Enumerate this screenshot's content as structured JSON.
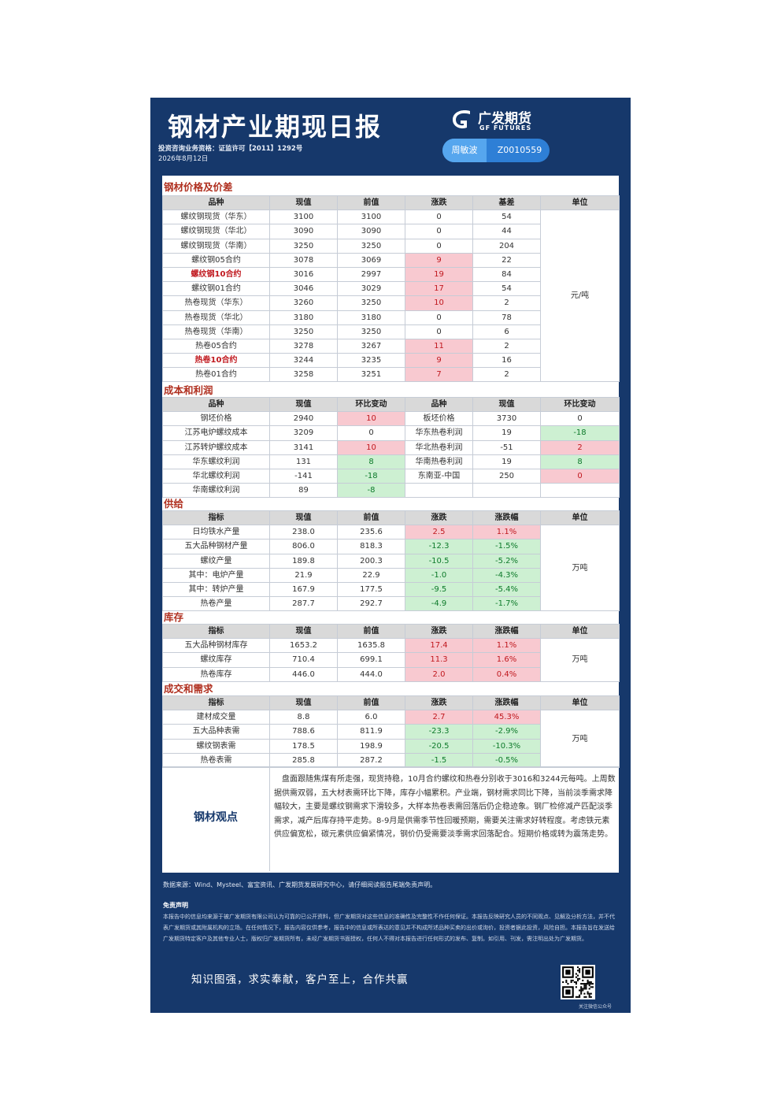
{
  "header": {
    "title": "钢材产业期现日报",
    "license": "投资咨询业务资格：证监许可【2011】1292号",
    "date": "2026年8月12日",
    "logo_cn": "广发期货",
    "logo_en": "GF FUTURES",
    "analyst_name": "周敏波",
    "analyst_id": "Z0010559"
  },
  "sections": {
    "price": "钢材价格及价差",
    "cost": "成本和利润",
    "supply": "供给",
    "inventory": "库存",
    "demand": "成交和需求"
  },
  "price_table": {
    "headers": [
      "品种",
      "现值",
      "前值",
      "涨跌",
      "基差",
      "单位"
    ],
    "unit": "元/吨",
    "rows": [
      {
        "name": "螺纹钢现货（华东）",
        "cur": "3100",
        "prev": "3100",
        "chg": "0",
        "basis": "54",
        "hl": false,
        "chg_color": ""
      },
      {
        "name": "螺纹钢现货（华北）",
        "cur": "3090",
        "prev": "3090",
        "chg": "0",
        "basis": "44",
        "hl": false,
        "chg_color": ""
      },
      {
        "name": "螺纹钢现货（华南）",
        "cur": "3250",
        "prev": "3250",
        "chg": "0",
        "basis": "204",
        "hl": false,
        "chg_color": ""
      },
      {
        "name": "螺纹钢05合约",
        "cur": "3078",
        "prev": "3069",
        "chg": "9",
        "basis": "22",
        "hl": false,
        "chg_color": "red"
      },
      {
        "name": "螺纹钢10合约",
        "cur": "3016",
        "prev": "2997",
        "chg": "19",
        "basis": "84",
        "hl": true,
        "chg_color": "red"
      },
      {
        "name": "螺纹钢01合约",
        "cur": "3046",
        "prev": "3029",
        "chg": "17",
        "basis": "54",
        "hl": false,
        "chg_color": "red"
      },
      {
        "name": "热卷现货（华东）",
        "cur": "3260",
        "prev": "3250",
        "chg": "10",
        "basis": "2",
        "hl": false,
        "chg_color": "red"
      },
      {
        "name": "热卷现货（华北）",
        "cur": "3180",
        "prev": "3180",
        "chg": "0",
        "basis": "78",
        "hl": false,
        "chg_color": ""
      },
      {
        "name": "热卷现货（华南）",
        "cur": "3250",
        "prev": "3250",
        "chg": "0",
        "basis": "6",
        "hl": false,
        "chg_color": ""
      },
      {
        "name": "热卷05合约",
        "cur": "3278",
        "prev": "3267",
        "chg": "11",
        "basis": "2",
        "hl": false,
        "chg_color": "red"
      },
      {
        "name": "热卷10合约",
        "cur": "3244",
        "prev": "3235",
        "chg": "9",
        "basis": "16",
        "hl": true,
        "chg_color": "red"
      },
      {
        "name": "热卷01合约",
        "cur": "3258",
        "prev": "3251",
        "chg": "7",
        "basis": "2",
        "hl": false,
        "chg_color": "red"
      }
    ]
  },
  "cost_table": {
    "headers": [
      "品种",
      "现值",
      "环比变动",
      "品种",
      "现值",
      "环比变动"
    ],
    "rows": [
      {
        "n1": "钢坯价格",
        "v1": "2940",
        "c1": "10",
        "c1c": "red",
        "n2": "板坯价格",
        "v2": "3730",
        "c2": "0",
        "c2c": ""
      },
      {
        "n1": "江苏电炉螺纹成本",
        "v1": "3209",
        "c1": "0",
        "c1c": "",
        "n2": "华东热卷利润",
        "v2": "19",
        "c2": "-18",
        "c2c": "grn"
      },
      {
        "n1": "江苏转炉螺纹成本",
        "v1": "3141",
        "c1": "10",
        "c1c": "red",
        "n2": "华北热卷利润",
        "v2": "-51",
        "c2": "2",
        "c2c": "red"
      },
      {
        "n1": "华东螺纹利润",
        "v1": "131",
        "c1": "8",
        "c1c": "grn",
        "n2": "华南热卷利润",
        "v2": "19",
        "c2": "8",
        "c2c": "grn"
      },
      {
        "n1": "华北螺纹利润",
        "v1": "-141",
        "c1": "-18",
        "c1c": "grn",
        "n2": "东南亚-中国",
        "v2": "250",
        "c2": "0",
        "c2c": "red"
      },
      {
        "n1": "华南螺纹利润",
        "v1": "89",
        "c1": "-8",
        "c1c": "grn",
        "n2": "",
        "v2": "",
        "c2": "",
        "c2c": ""
      }
    ]
  },
  "supply_table": {
    "headers": [
      "指标",
      "现值",
      "前值",
      "涨跌",
      "涨跌幅",
      "单位"
    ],
    "unit": "万吨",
    "rows": [
      {
        "name": "日均铁水产量",
        "cur": "238.0",
        "prev": "235.6",
        "chg": "2.5",
        "pct": "1.1%",
        "color": "red"
      },
      {
        "name": "五大品种钢材产量",
        "cur": "806.0",
        "prev": "818.3",
        "chg": "-12.3",
        "pct": "-1.5%",
        "color": "grn"
      },
      {
        "name": "螺纹产量",
        "cur": "189.8",
        "prev": "200.3",
        "chg": "-10.5",
        "pct": "-5.2%",
        "color": "grn"
      },
      {
        "name": "其中：电炉产量",
        "cur": "21.9",
        "prev": "22.9",
        "chg": "-1.0",
        "pct": "-4.3%",
        "color": "grn"
      },
      {
        "name": "其中：转炉产量",
        "cur": "167.9",
        "prev": "177.5",
        "chg": "-9.5",
        "pct": "-5.4%",
        "color": "grn"
      },
      {
        "name": "热卷产量",
        "cur": "287.7",
        "prev": "292.7",
        "chg": "-4.9",
        "pct": "-1.7%",
        "color": "grn"
      }
    ]
  },
  "inventory_table": {
    "headers": [
      "指标",
      "现值",
      "前值",
      "涨跌",
      "涨跌幅",
      "单位"
    ],
    "unit": "万吨",
    "rows": [
      {
        "name": "五大品种钢材库存",
        "cur": "1653.2",
        "prev": "1635.8",
        "chg": "17.4",
        "pct": "1.1%",
        "color": "red"
      },
      {
        "name": "螺纹库存",
        "cur": "710.4",
        "prev": "699.1",
        "chg": "11.3",
        "pct": "1.6%",
        "color": "red"
      },
      {
        "name": "热卷库存",
        "cur": "446.0",
        "prev": "444.0",
        "chg": "2.0",
        "pct": "0.4%",
        "color": "red"
      }
    ]
  },
  "demand_table": {
    "headers": [
      "指标",
      "现值",
      "前值",
      "涨跌",
      "涨跌幅",
      "单位"
    ],
    "unit": "万吨",
    "rows": [
      {
        "name": "建材成交量",
        "cur": "8.8",
        "prev": "6.0",
        "chg": "2.7",
        "pct": "45.3%",
        "color": "red"
      },
      {
        "name": "五大品种表需",
        "cur": "788.6",
        "prev": "811.9",
        "chg": "-23.3",
        "pct": "-2.9%",
        "color": "grn"
      },
      {
        "name": "螺纹钢表需",
        "cur": "178.5",
        "prev": "198.9",
        "chg": "-20.5",
        "pct": "-10.3%",
        "color": "grn"
      },
      {
        "name": "热卷表需",
        "cur": "285.8",
        "prev": "287.2",
        "chg": "-1.5",
        "pct": "-0.5%",
        "color": "grn"
      }
    ]
  },
  "view": {
    "title": "钢材观点",
    "text": "盘面跟随焦煤有所走强，现货持稳，10月合约螺纹和热卷分别收于3016和3244元每吨。上周数据供需双弱，五大材表需环比下降，库存小幅累积。产业端，钢材需求同比下降，当前淡季需求降幅较大，主要是螺纹钢需求下滑较多，大样本热卷表需回落后仍企稳迹象。钢厂检修减产匹配淡季需求，减产后库存持平走势。8-9月是供需季节性回暖预期，需要关注需求好转程度。考虑铁元素供应偏宽松，碳元素供应偏紧情况，钢价仍受需要淡季需求回落配合。短期价格或转为震荡走势。"
  },
  "footer": {
    "source": "数据来源：Wind、Mysteel、富宝资讯、广发期货发展研究中心，请仔细阅读报告尾端免责声明。",
    "disclaimer_title": "免责声明",
    "disclaimer_text": "本报告中的信息均来源于被广发期货有限公司认为可靠的已公开资料，但广发期货对这些信息的准确性及完整性不作任何保证。本报告反映研究人员的不同观点、见解及分析方法，并不代表广发期货或其附属机构的立场。在任何情况下，报告内容仅供参考，报告中的信息或所表达的意见并不构成所述品种买卖的出价或询价，投资者据此投资，风险自担。本报告旨在发送给广发期货特定客户及其他专业人士，版权归广发期货所有，未经广发期货书面授权，任何人不得对本报告进行任何形式的发布、复制。如引用、刊发，需注明出处为广发期货。",
    "slogan": "知识图强，求实奉献，客户至上，合作共赢",
    "qr_label": "关注微信公众号"
  }
}
